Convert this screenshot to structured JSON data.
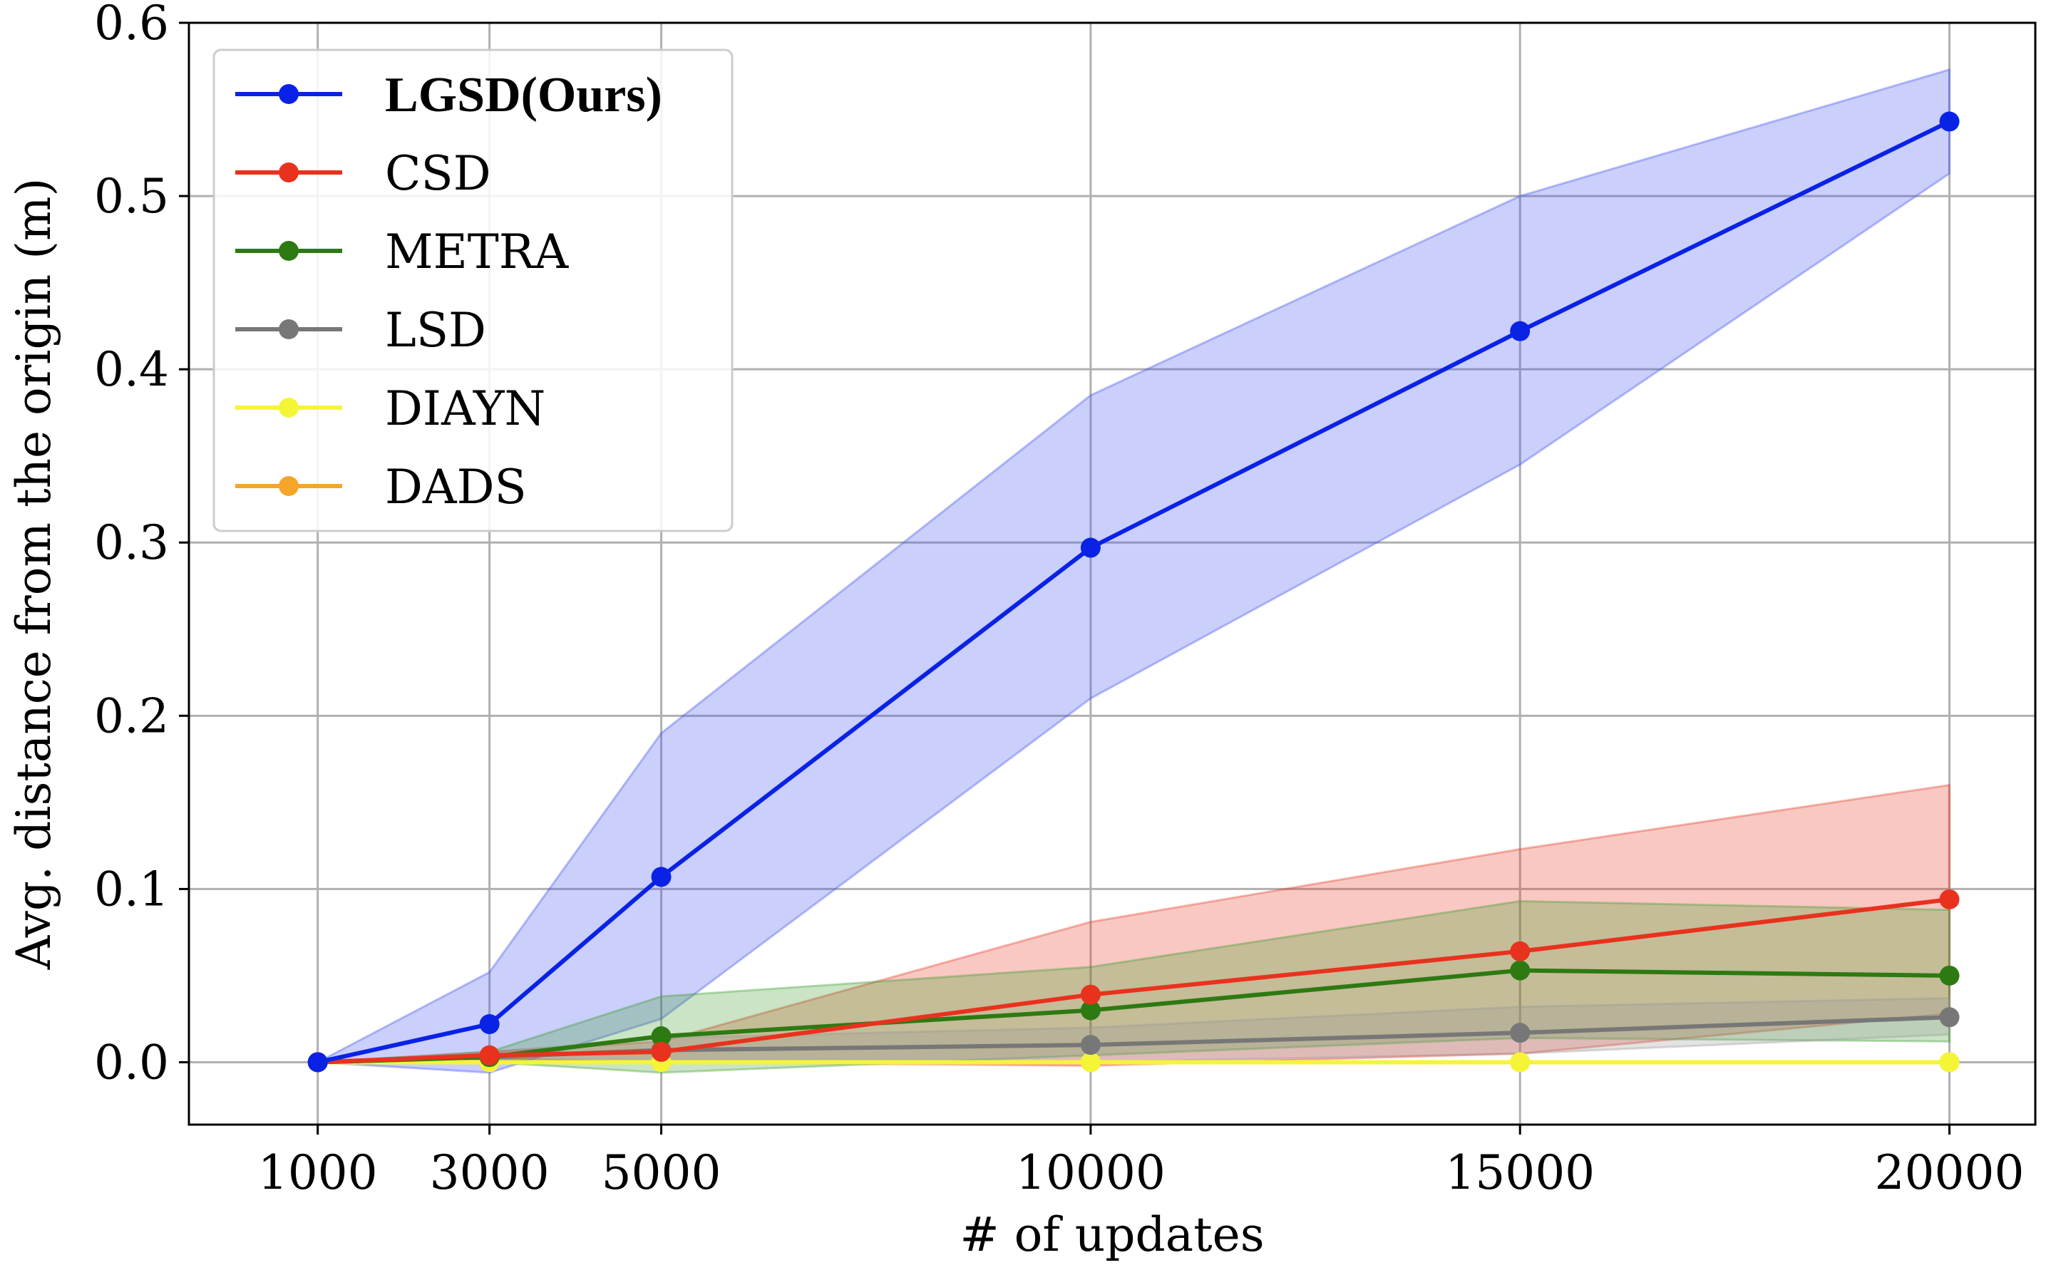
{
  "chart_data": {
    "type": "line",
    "title": "",
    "xlabel": "# of updates",
    "ylabel": "Avg. distance from the origin (m)",
    "x": [
      1000,
      3000,
      5000,
      10000,
      15000,
      20000
    ],
    "xticks": [
      "1000",
      "3000",
      "5000",
      "10000",
      "15000",
      "20000"
    ],
    "yticks": [
      "0.0",
      "0.1",
      "0.2",
      "0.3",
      "0.4",
      "0.5",
      "0.6"
    ],
    "xlim": [
      -500,
      21000
    ],
    "ylim": [
      -0.036,
      0.6
    ],
    "grid": true,
    "legend_position": "top-left",
    "series": [
      {
        "name": "LGSD(Ours)",
        "color": "#0a22e6",
        "band_color": "#3b4cf0",
        "bold": true,
        "values": [
          0.0,
          0.022,
          0.107,
          0.297,
          0.422,
          0.543
        ],
        "lower": [
          0.0,
          -0.006,
          0.025,
          0.21,
          0.345,
          0.513
        ],
        "upper": [
          0.0,
          0.052,
          0.19,
          0.385,
          0.5,
          0.573
        ]
      },
      {
        "name": "CSD",
        "color": "#e8321e",
        "band_color": "#e8321e",
        "values": [
          0.0,
          0.004,
          0.006,
          0.039,
          0.064,
          0.094
        ],
        "lower": [
          0.0,
          0.002,
          0.0,
          -0.002,
          0.005,
          0.028
        ],
        "upper": [
          0.0,
          0.006,
          0.012,
          0.081,
          0.123,
          0.16
        ]
      },
      {
        "name": "METRA",
        "color": "#2d7a12",
        "band_color": "#3a9a2a",
        "values": [
          0.0,
          0.003,
          0.015,
          0.03,
          0.053,
          0.05
        ],
        "lower": [
          0.0,
          0.0,
          -0.006,
          0.004,
          0.014,
          0.012
        ],
        "upper": [
          0.0,
          0.006,
          0.038,
          0.055,
          0.093,
          0.088
        ]
      },
      {
        "name": "LSD",
        "color": "#777777",
        "band_color": "#999999",
        "values": [
          0.0,
          0.003,
          0.007,
          0.01,
          0.017,
          0.026
        ],
        "lower": [
          0.0,
          0.0,
          0.0,
          0.0,
          0.005,
          0.016
        ],
        "upper": [
          0.0,
          0.006,
          0.014,
          0.02,
          0.032,
          0.037
        ]
      },
      {
        "name": "DIAYN",
        "color": "#f5f538",
        "band_color": "#f5f538",
        "values": [
          0.0,
          0.0,
          0.0,
          0.0,
          0.0,
          0.0
        ],
        "lower": [
          0.0,
          0.0,
          0.0,
          0.0,
          0.0,
          0.0
        ],
        "upper": [
          0.0,
          0.0,
          0.0,
          0.0,
          0.0,
          0.0
        ]
      },
      {
        "name": "DADS",
        "color": "#f5a52a",
        "band_color": "#f5a52a",
        "values": [
          0.0,
          0.0,
          0.0,
          0.0,
          0.0,
          0.0
        ],
        "lower": [
          0.0,
          0.0,
          0.0,
          0.0,
          0.0,
          0.0
        ],
        "upper": [
          0.0,
          0.0,
          0.0,
          0.0,
          0.0,
          0.0
        ]
      }
    ]
  }
}
